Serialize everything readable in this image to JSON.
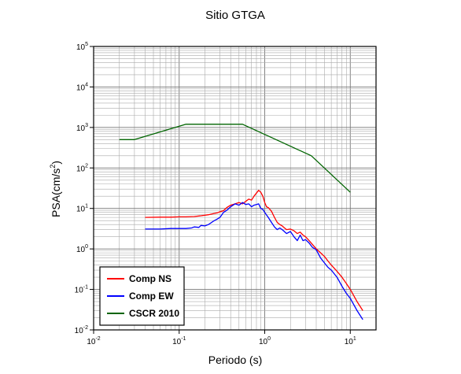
{
  "chart_data": {
    "type": "line",
    "title": "Sitio GTGA",
    "xlabel": "Periodo (s)",
    "ylabel_base": "PSA(cm/s",
    "ylabel_sup": "2",
    "ylabel_close": ")",
    "xscale": "log",
    "yscale": "log",
    "xlim": [
      0.01,
      20
    ],
    "ylim": [
      0.01,
      100000
    ],
    "grid": true,
    "legend_position": "bottom-left",
    "x_ticks": [
      {
        "base": "10",
        "exp": "-2",
        "value": 0.01
      },
      {
        "base": "10",
        "exp": "-1",
        "value": 0.1
      },
      {
        "base": "10",
        "exp": "0",
        "value": 1
      },
      {
        "base": "10",
        "exp": "1",
        "value": 10
      }
    ],
    "y_ticks": [
      {
        "base": "10",
        "exp": "-2",
        "value": 0.01
      },
      {
        "base": "10",
        "exp": "-1",
        "value": 0.1
      },
      {
        "base": "10",
        "exp": "0",
        "value": 1
      },
      {
        "base": "10",
        "exp": "1",
        "value": 10
      },
      {
        "base": "10",
        "exp": "2",
        "value": 100
      },
      {
        "base": "10",
        "exp": "3",
        "value": 1000
      },
      {
        "base": "10",
        "exp": "4",
        "value": 10000
      },
      {
        "base": "10",
        "exp": "5",
        "value": 100000
      }
    ],
    "series": [
      {
        "name": "Comp NS",
        "color": "#ff0000",
        "x": [
          0.04,
          0.06,
          0.08,
          0.1,
          0.12,
          0.15,
          0.18,
          0.2,
          0.22,
          0.25,
          0.28,
          0.3,
          0.33,
          0.36,
          0.4,
          0.45,
          0.5,
          0.55,
          0.6,
          0.65,
          0.7,
          0.75,
          0.8,
          0.85,
          0.9,
          0.95,
          1.0,
          1.05,
          1.1,
          1.2,
          1.3,
          1.4,
          1.5,
          1.6,
          1.7,
          1.8,
          2.0,
          2.2,
          2.4,
          2.6,
          2.8,
          3.0,
          3.3,
          3.6,
          4.0,
          4.5,
          5.0,
          5.5,
          6.0,
          7.0,
          8.0,
          9.0,
          10.0,
          12.0,
          14.0
        ],
        "y": [
          6.0,
          6.1,
          6.1,
          6.2,
          6.2,
          6.3,
          6.6,
          6.8,
          7.0,
          7.4,
          7.8,
          8.3,
          8.8,
          10.5,
          12.0,
          13.0,
          14.0,
          13.0,
          15.0,
          17.0,
          16.0,
          20.0,
          24.0,
          28.0,
          25.0,
          20.0,
          14.0,
          11.0,
          10.5,
          8.5,
          6.0,
          4.5,
          4.0,
          3.7,
          3.3,
          3.0,
          3.1,
          2.8,
          2.4,
          2.6,
          2.2,
          2.0,
          1.6,
          1.3,
          1.0,
          0.8,
          0.65,
          0.5,
          0.4,
          0.28,
          0.2,
          0.14,
          0.1,
          0.05,
          0.03
        ]
      },
      {
        "name": "Comp EW",
        "color": "#0000ff",
        "x": [
          0.04,
          0.06,
          0.08,
          0.1,
          0.12,
          0.14,
          0.15,
          0.17,
          0.18,
          0.2,
          0.22,
          0.25,
          0.28,
          0.3,
          0.33,
          0.36,
          0.4,
          0.45,
          0.5,
          0.55,
          0.6,
          0.65,
          0.7,
          0.75,
          0.8,
          0.85,
          0.9,
          0.95,
          1.0,
          1.1,
          1.2,
          1.3,
          1.4,
          1.5,
          1.6,
          1.8,
          2.0,
          2.2,
          2.4,
          2.6,
          2.8,
          3.0,
          3.3,
          3.6,
          4.0,
          4.5,
          5.0,
          5.5,
          6.0,
          7.0,
          8.0,
          9.0,
          10.0,
          12.0,
          14.0
        ],
        "y": [
          3.1,
          3.1,
          3.2,
          3.2,
          3.2,
          3.3,
          3.5,
          3.4,
          3.8,
          3.7,
          4.0,
          4.8,
          5.5,
          6.0,
          8.0,
          9.0,
          11.0,
          13.0,
          12.0,
          14.0,
          12.5,
          13.0,
          11.0,
          12.0,
          12.5,
          13.0,
          10.0,
          9.5,
          8.0,
          6.0,
          4.5,
          3.5,
          3.0,
          3.3,
          3.0,
          2.4,
          2.7,
          2.0,
          1.6,
          2.2,
          1.6,
          1.7,
          1.4,
          1.1,
          0.95,
          0.6,
          0.45,
          0.35,
          0.3,
          0.2,
          0.12,
          0.08,
          0.06,
          0.03,
          0.018
        ]
      },
      {
        "name": "CSCR 2010",
        "color": "#006400",
        "x": [
          0.02,
          0.03,
          0.12,
          0.55,
          3.5,
          10.0
        ],
        "y": [
          500,
          500,
          1200,
          1200,
          200,
          25
        ]
      }
    ]
  },
  "colors": {
    "grid_major": "#777777",
    "grid_minor": "#aaaaaa",
    "frame": "#000000"
  }
}
